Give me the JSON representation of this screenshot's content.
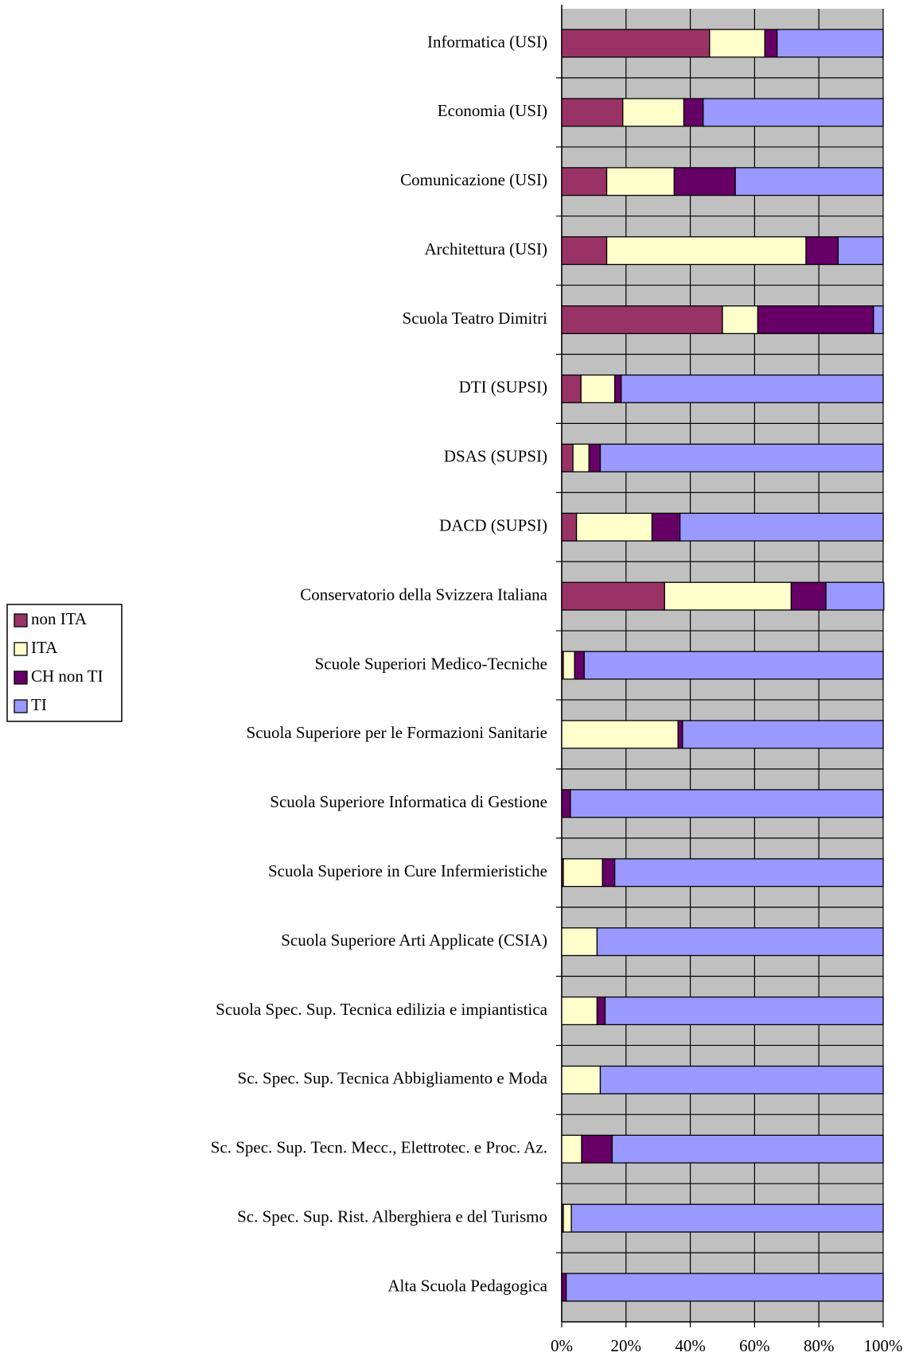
{
  "chart_data": {
    "type": "stacked-barh",
    "categories": [
      "Informatica (USI)",
      "Economia (USI)",
      "Comunicazione (USI)",
      "Architettura (USI)",
      "Scuola Teatro Dimitri",
      "DTI (SUPSI)",
      "DSAS (SUPSI)",
      "DACD (SUPSI)",
      "Conservatorio della Svizzera Italiana",
      "Scuole Superiori Medico-Tecniche",
      "Scuola Superiore per le Formazioni Sanitarie",
      "Scuola Superiore Informatica di Gestione",
      "Scuola Superiore in Cure Infermieristiche",
      "Scuola Superiore Arti Applicate (CSIA)",
      "Scuola Spec. Sup. Tecnica edilizia e impiantistica",
      "Sc. Spec. Sup. Tecnica Abbigliamento e Moda",
      "Sc. Spec. Sup. Tecn. Mecc., Elettrotec. e Proc. Az.",
      "Sc. Spec. Sup. Rist. Alberghiera e del Turismo",
      "Alta Scuola Pedagogica"
    ],
    "series": [
      {
        "name": "non ITA",
        "color": "#993366",
        "values": [
          46,
          19,
          14,
          14,
          50,
          6,
          3.5,
          4.6,
          32,
          0.5,
          0,
          0,
          0.5,
          0,
          0,
          0,
          0,
          0.5,
          0
        ]
      },
      {
        "name": "ITA",
        "color": "#ffffcc",
        "values": [
          17.2,
          19,
          21,
          62,
          11,
          10.5,
          5,
          23.5,
          39.4,
          3.5,
          36.2,
          0,
          12.2,
          11,
          11,
          12,
          6.2,
          2.5,
          0
        ]
      },
      {
        "name": "CH non TI",
        "color": "#660066",
        "values": [
          3.8,
          6,
          19,
          10,
          36,
          2,
          3.5,
          8.7,
          10.8,
          3,
          1.4,
          2.7,
          3.8,
          0,
          2.5,
          0,
          9.5,
          0,
          1.4
        ]
      },
      {
        "name": "TI",
        "color": "#9999ff",
        "values": [
          33,
          56,
          46,
          14,
          3,
          81.5,
          88,
          63.2,
          18,
          93,
          62.4,
          97.3,
          83.5,
          89,
          86.5,
          88,
          84.3,
          97,
          98.6
        ]
      }
    ],
    "xlim": [
      0,
      100
    ],
    "xticks": [
      {
        "value": 0,
        "label": "0%"
      },
      {
        "value": 20,
        "label": "20%"
      },
      {
        "value": 40,
        "label": "40%"
      },
      {
        "value": 60,
        "label": "60%"
      },
      {
        "value": 80,
        "label": "80%"
      },
      {
        "value": 100,
        "label": "100%"
      }
    ],
    "grid": true,
    "legend": "left"
  }
}
